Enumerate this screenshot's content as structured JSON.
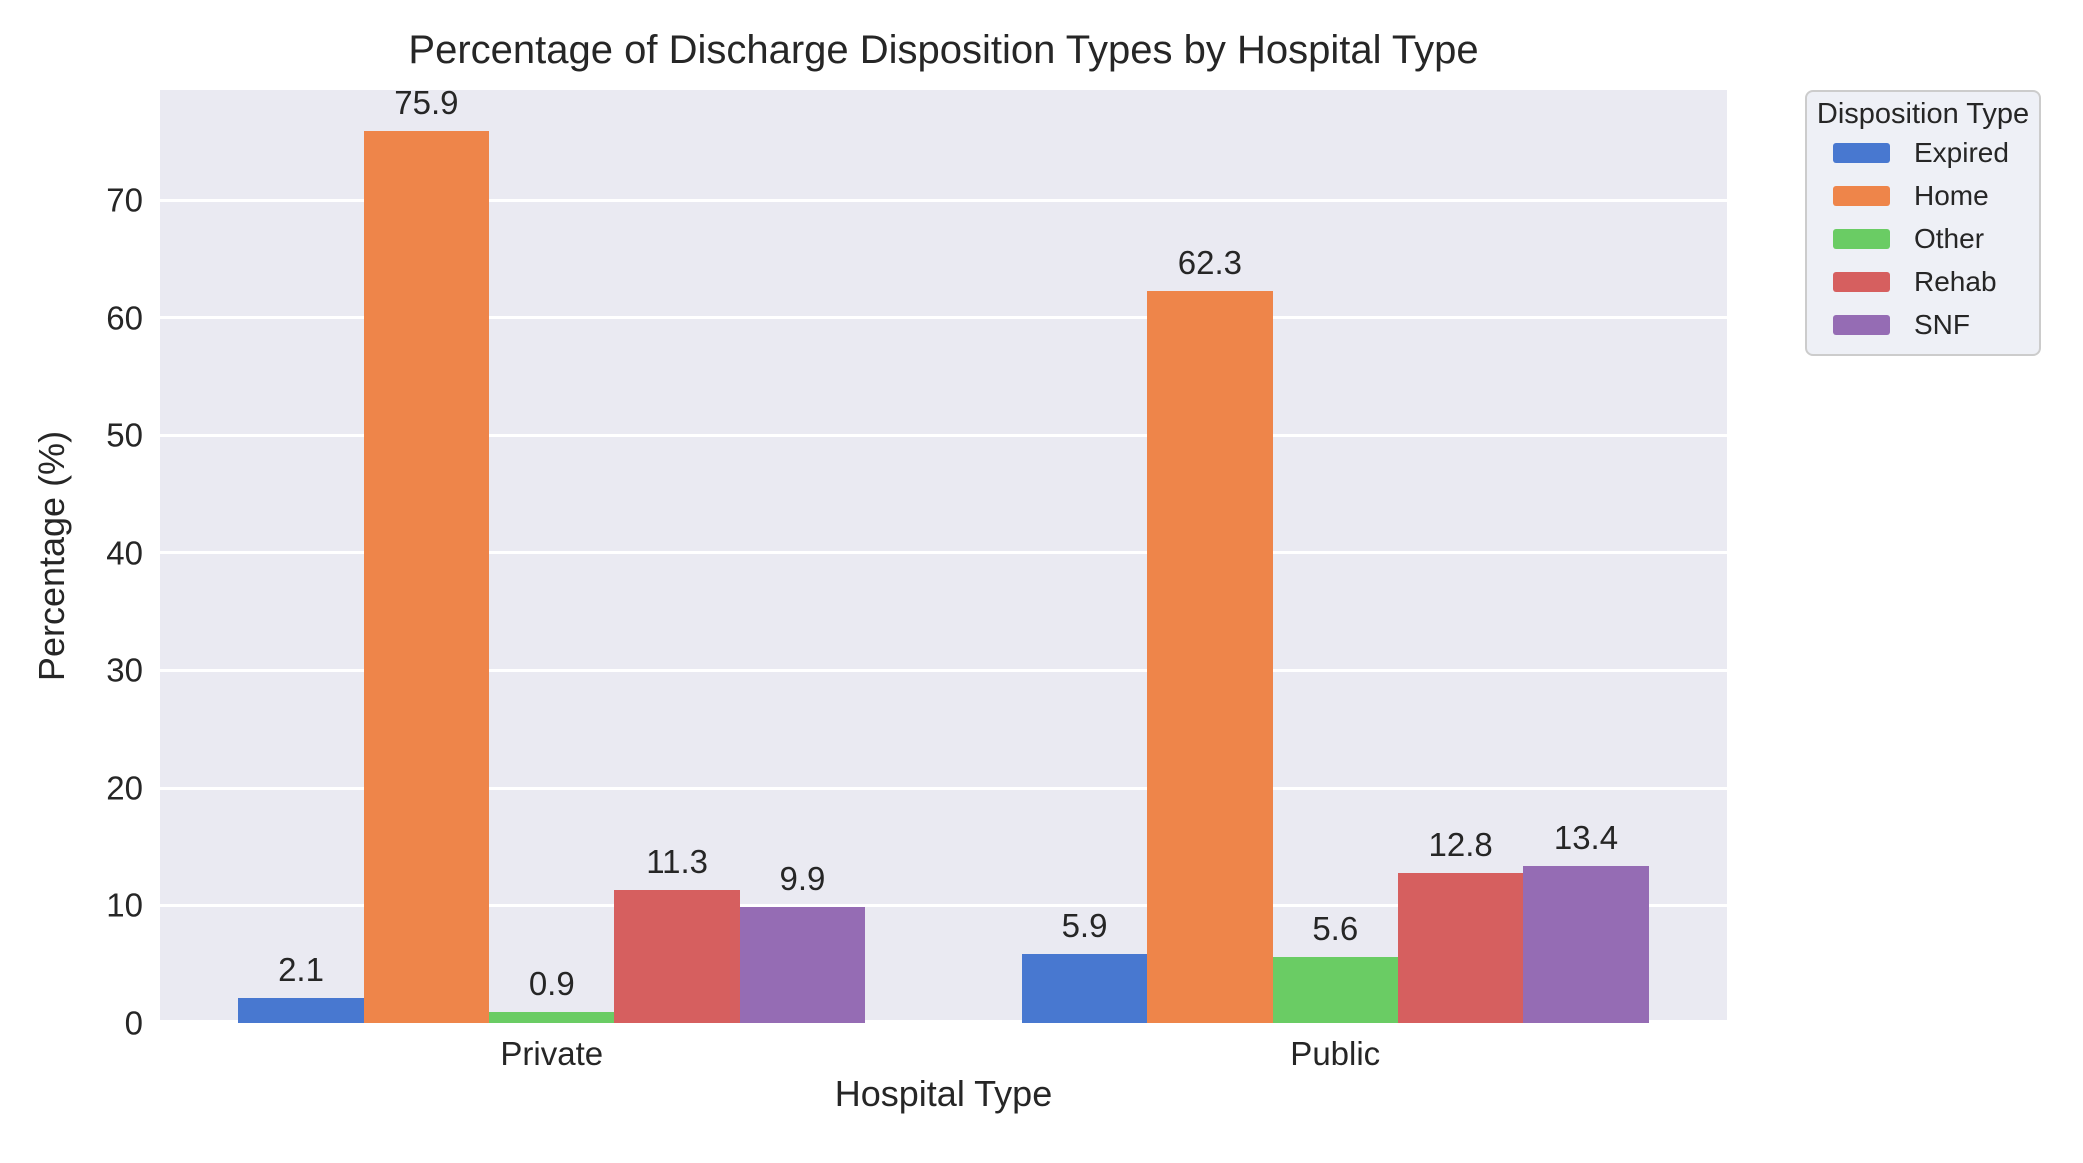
{
  "chart_data": {
    "type": "bar",
    "title": "Percentage of Discharge Disposition Types by Hospital Type",
    "xlabel": "Hospital Type",
    "ylabel": "Percentage (%)",
    "categories": [
      "Private",
      "Public"
    ],
    "series": [
      {
        "name": "Expired",
        "color": "#4878d0",
        "values": [
          2.1,
          5.9
        ]
      },
      {
        "name": "Home",
        "color": "#ee854a",
        "values": [
          75.9,
          62.3
        ]
      },
      {
        "name": "Other",
        "color": "#6acc64",
        "values": [
          0.9,
          5.6
        ]
      },
      {
        "name": "Rehab",
        "color": "#d65f5f",
        "values": [
          11.3,
          12.8
        ]
      },
      {
        "name": "SNF",
        "color": "#956cb4",
        "values": [
          9.9,
          13.4
        ]
      }
    ],
    "yticks": [
      0,
      10,
      20,
      30,
      40,
      50,
      60,
      70
    ],
    "ylim": [
      0,
      79.4
    ],
    "grid": true,
    "bar_label_decimals": 1,
    "legend_title": "Disposition Type",
    "legend_position": "outside upper right"
  },
  "style": {
    "axes_background": "#eaeaf2",
    "figure_background": "#ffffff",
    "grid_color": "#ffffff",
    "text_color": "#262626",
    "legend_background": "#eef0f6",
    "legend_border": "#cccccc"
  }
}
